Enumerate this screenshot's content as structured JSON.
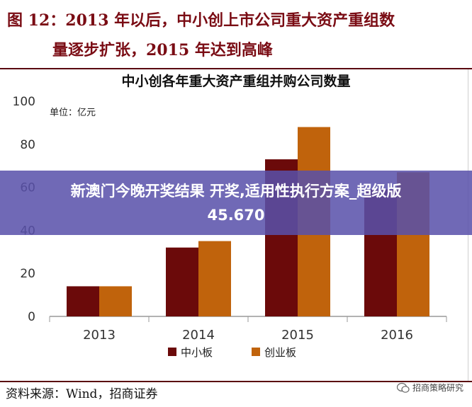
{
  "figure": {
    "title_line1": "图 12：2013 年以后，中小创上市公司重大资产重组数",
    "title_line2": "量逐步扩张，2015 年达到高峰"
  },
  "banner": {
    "line1": "新澳门今晚开奖结果 开奖,适用性执行方案_超级版",
    "line2": "45.670"
  },
  "source": "资料来源：Wind，招商证券",
  "brand": {
    "name": "招商策略研究",
    "icon": "wechat-icon"
  },
  "chart_data": {
    "type": "bar",
    "title": "中小创各年重大资产重组并购公司数量",
    "unit": "单位：亿元",
    "categories": [
      "2013",
      "2014",
      "2015",
      "2016"
    ],
    "series": [
      {
        "name": "中小板",
        "color": "#6b0a0a",
        "values": [
          14,
          32,
          73,
          59
        ]
      },
      {
        "name": "创业板",
        "color": "#c0630c",
        "values": [
          14,
          35,
          88,
          67
        ]
      }
    ],
    "ylim": [
      0,
      100
    ],
    "yticks": [
      0,
      20,
      40,
      60,
      80,
      100
    ],
    "grid": false,
    "legend": "bottom"
  }
}
